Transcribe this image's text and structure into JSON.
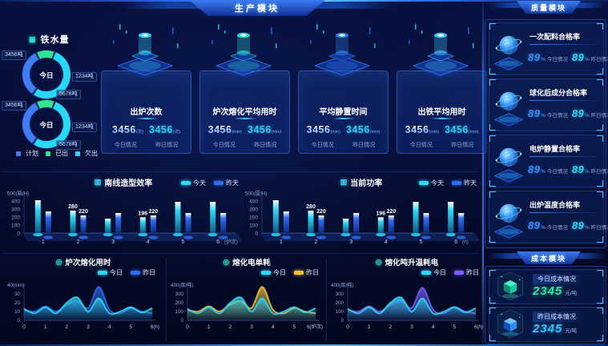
{
  "headers": {
    "production": "生产模块",
    "quality": "质量模块",
    "cost": "成本模块"
  },
  "icons": {
    "iron": "▣",
    "bar": "▥",
    "line": "◎"
  },
  "colors": {
    "accent_cyan": "#2fd8f5",
    "accent_blue": "#2e6cf0",
    "accent_green": "#2ee68f",
    "stat_icons": [
      "#35e0ff",
      "#2ee6d0",
      "#2e86f0",
      "#3fd0ff"
    ],
    "cost_icons": [
      {
        "top": "#4ef0c0",
        "left": "#0d8f6e",
        "right": "#19c9a8",
        "glow": "#2ee6a0"
      },
      {
        "top": "#6fc0ff",
        "left": "#1550c0",
        "right": "#2e8cf0",
        "glow": "#35c5ff"
      }
    ]
  },
  "iron": {
    "title": "铁水量",
    "donuts": [
      {
        "center": "今日",
        "callouts": [
          "3456吨",
          "1234吨",
          "5678吨"
        ]
      },
      {
        "center": "今日",
        "callouts": [
          "3456吨",
          "1234吨",
          "5678吨"
        ]
      }
    ],
    "legend": [
      {
        "label": "计划",
        "color": "#3f7cf6"
      },
      {
        "label": "已出",
        "color": "#2ee68f"
      },
      {
        "label": "欠出",
        "color": "#28d8f7"
      }
    ]
  },
  "stat_cards": [
    {
      "title": "出炉次数",
      "today": {
        "value": "3456",
        "unit": "(次)",
        "label": "今日情况"
      },
      "yesterday": {
        "value": "3456",
        "unit": "(次)",
        "label": "昨日情况"
      }
    },
    {
      "title": "炉次熔化平均用时",
      "today": {
        "value": "3456",
        "unit": "(min)",
        "label": "今日情况"
      },
      "yesterday": {
        "value": "3456",
        "unit": "(min)",
        "label": "昨日情况"
      }
    },
    {
      "title": "平均静置时间",
      "today": {
        "value": "3456",
        "unit": "(min)",
        "label": "今日情况"
      },
      "yesterday": {
        "value": "3456",
        "unit": "(min)",
        "label": "昨日情况"
      }
    },
    {
      "title": "出铁平均用时",
      "today": {
        "value": "3456",
        "unit": "(min)",
        "label": "今日情况"
      },
      "yesterday": {
        "value": "3456",
        "unit": "(min)",
        "label": "昨日情况"
      }
    }
  ],
  "chart_data": [
    {
      "type": "bar",
      "title": "南线造型效率",
      "categories": [
        "1",
        "2",
        "3",
        "4",
        "5",
        "6"
      ],
      "xlabel": "(炉次)",
      "ylim": [
        0,
        500
      ],
      "yticks": [
        0,
        100,
        200,
        300,
        400
      ],
      "ytop_label": "500(箱/H)",
      "labeled_categories": [
        1,
        3
      ],
      "legend_position": "top-right",
      "series": [
        {
          "name": "今天",
          "color": "#2fd8f5",
          "values": [
            410,
            280,
            180,
            196,
            390,
            390
          ]
        },
        {
          "name": "昨天",
          "color": "#2e6cf0",
          "values": [
            270,
            220,
            250,
            220,
            250,
            250
          ]
        }
      ]
    },
    {
      "type": "bar",
      "title": "当前功率",
      "categories": [
        "1",
        "2",
        "3",
        "4",
        "5",
        "6"
      ],
      "xlabel": "(h)",
      "ylim": [
        0,
        500
      ],
      "yticks": [
        0,
        100,
        200,
        300,
        400
      ],
      "ytop_label": "500(度/H)",
      "labeled_categories": [
        1,
        3
      ],
      "legend_position": "top-right",
      "series": [
        {
          "name": "今天",
          "color": "#2fd8f5",
          "values": [
            410,
            280,
            180,
            196,
            390,
            390
          ]
        },
        {
          "name": "昨天",
          "color": "#2e6cf0",
          "values": [
            270,
            220,
            250,
            220,
            250,
            250
          ]
        }
      ]
    },
    {
      "type": "area",
      "title": "炉次熔化用时",
      "x": [
        0,
        0.5,
        1,
        1.5,
        2,
        2.5,
        3,
        3.5,
        4,
        4.5,
        5,
        5.5,
        6
      ],
      "xlabel": "(h)",
      "ylim": [
        0,
        40
      ],
      "yticks": [
        0,
        10,
        20,
        30
      ],
      "ytop_label": "40(min)",
      "legend_position": "top-right",
      "series": [
        {
          "name": "今日",
          "color": "#2fd8f5",
          "values": [
            13,
            8,
            15,
            8,
            20,
            26,
            10,
            25,
            8,
            10,
            15,
            9,
            14
          ]
        },
        {
          "name": "昨日",
          "color": "#2e6cf0",
          "values": [
            12,
            10,
            16,
            10,
            18,
            22,
            14,
            38,
            12,
            8,
            14,
            10,
            8
          ]
        }
      ]
    },
    {
      "type": "area",
      "title": "熔化电单耗",
      "x": [
        0,
        0.5,
        1,
        1.5,
        2,
        2.5,
        3,
        3.5,
        4,
        4.5,
        5,
        5.5,
        6
      ],
      "xlabel": "(炉次)",
      "ylim": [
        0,
        400
      ],
      "yticks": [
        0,
        100,
        200,
        300
      ],
      "ytop_label": "400(度/吨)",
      "legend_position": "top-right",
      "series": [
        {
          "name": "今日",
          "color": "#2fd8f5",
          "values": [
            130,
            80,
            150,
            80,
            200,
            260,
            100,
            250,
            80,
            100,
            150,
            90,
            140
          ]
        },
        {
          "name": "昨日",
          "color": "#f0c23c",
          "values": [
            120,
            100,
            160,
            100,
            180,
            220,
            140,
            380,
            120,
            80,
            140,
            100,
            80
          ]
        }
      ]
    },
    {
      "type": "area",
      "title": "熔化吨升温耗电",
      "x": [
        0,
        0.5,
        1,
        1.5,
        2,
        2.5,
        3,
        3.5,
        4,
        4.5,
        5,
        5.5,
        6
      ],
      "xlabel": "(h)",
      "ylim": [
        0,
        400
      ],
      "yticks": [
        0,
        100,
        200,
        300
      ],
      "ytop_label": "400(度/吨)",
      "legend_position": "top-right",
      "series": [
        {
          "name": "今日",
          "color": "#2fd8f5",
          "values": [
            130,
            80,
            150,
            80,
            200,
            260,
            100,
            250,
            80,
            100,
            150,
            90,
            140
          ]
        },
        {
          "name": "昨日",
          "color": "#7a5cff",
          "values": [
            120,
            100,
            160,
            100,
            180,
            230,
            140,
            370,
            120,
            80,
            150,
            100,
            80
          ]
        }
      ]
    },
    {
      "type": "pie",
      "center_label": "今日",
      "slices": [
        {
          "label": "计划",
          "value": 3456
        },
        {
          "label": "已出",
          "value": 1234
        },
        {
          "label": "欠出",
          "value": 5678
        }
      ]
    },
    {
      "type": "pie",
      "center_label": "今日",
      "slices": [
        {
          "label": "计划",
          "value": 3456
        },
        {
          "label": "已出",
          "value": 1234
        },
        {
          "label": "欠出",
          "value": 5678
        }
      ]
    }
  ],
  "quality": {
    "items": [
      {
        "title": "一次配料合格率",
        "today": {
          "value": "89",
          "unit": "%",
          "label": "今日情况"
        },
        "yesterday": {
          "value": "89",
          "unit": "%",
          "label": "昨日情况"
        }
      },
      {
        "title": "球化后成分合格率",
        "today": {
          "value": "89",
          "unit": "%",
          "label": "今日情况"
        },
        "yesterday": {
          "value": "89",
          "unit": "%",
          "label": "昨日情况"
        }
      },
      {
        "title": "电炉静置合格率",
        "today": {
          "value": "89",
          "unit": "%",
          "label": "今日情况"
        },
        "yesterday": {
          "value": "89",
          "unit": "%",
          "label": "昨日情况"
        }
      },
      {
        "title": "出炉温度合格率",
        "today": {
          "value": "89",
          "unit": "%",
          "label": "今日情况"
        },
        "yesterday": {
          "value": "89",
          "unit": "%",
          "label": "昨日情况"
        }
      }
    ]
  },
  "cost": {
    "items": [
      {
        "label": "今日成本情况",
        "value": "2345",
        "unit": "元/吨"
      },
      {
        "label": "昨日成本情况",
        "value": "2345",
        "unit": "元/吨"
      }
    ]
  }
}
